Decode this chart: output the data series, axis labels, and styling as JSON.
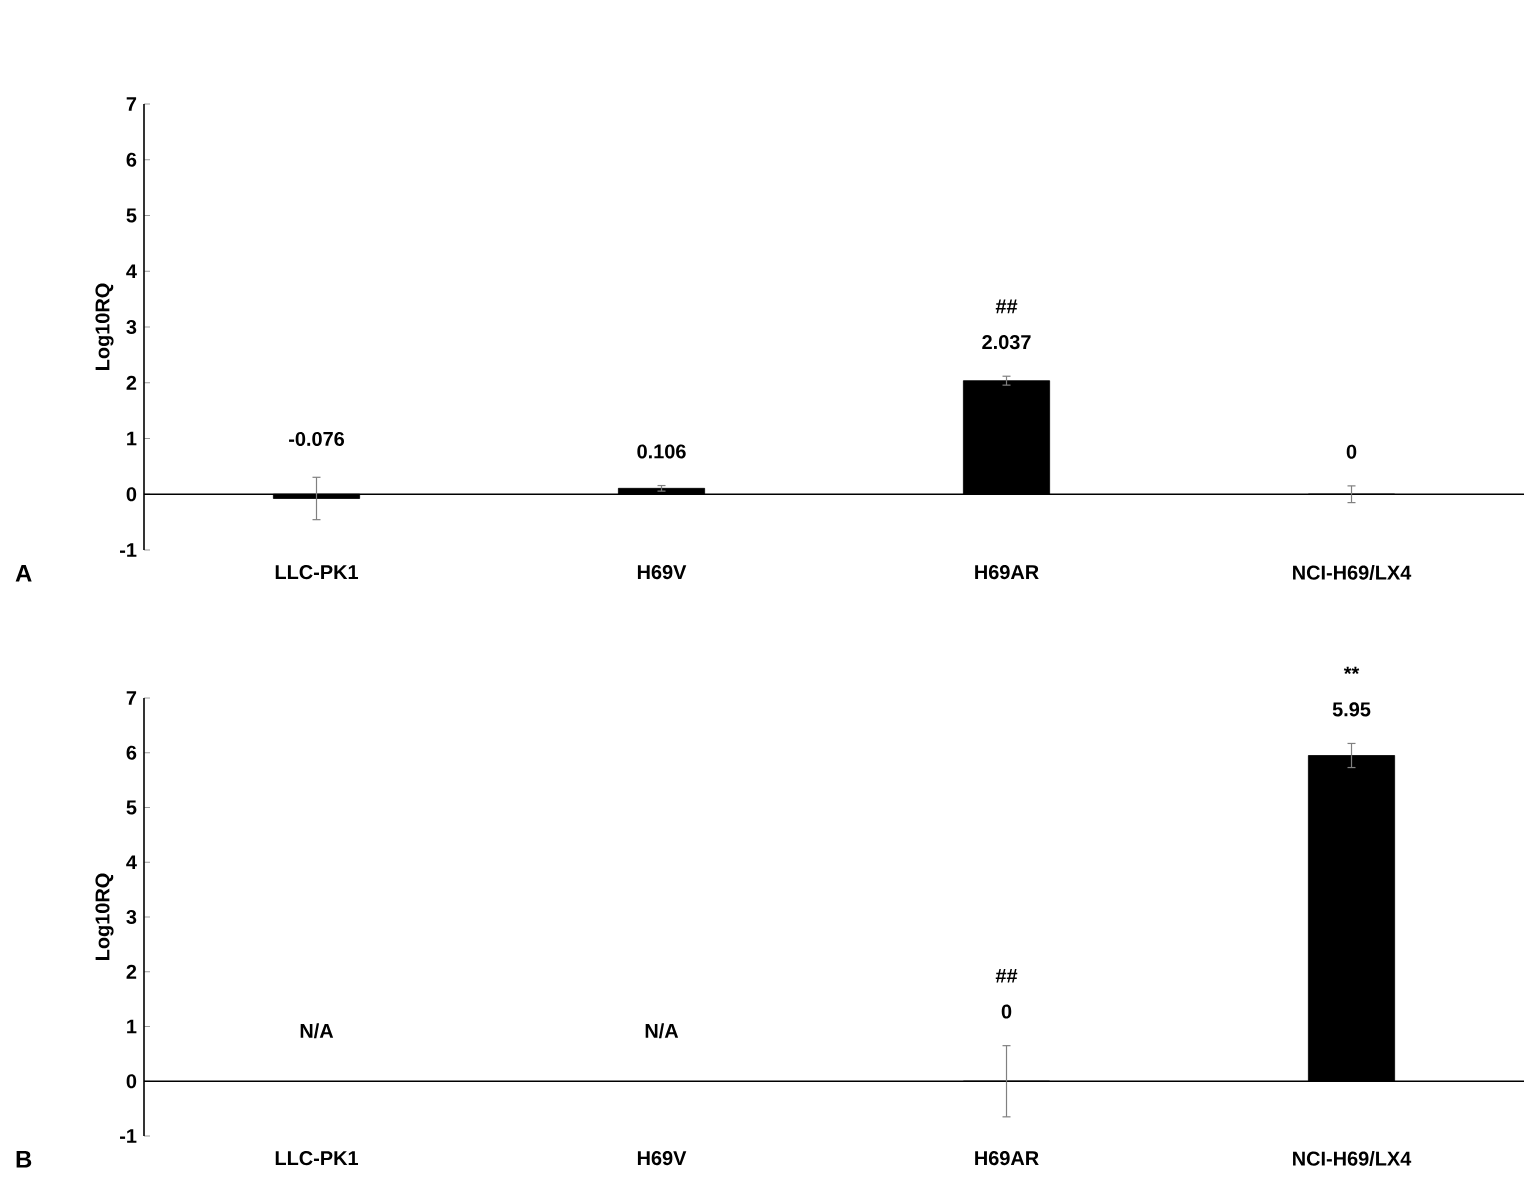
{
  "chart_data": [
    {
      "type": "bar",
      "ylabel": "Log10RQ",
      "categories": [
        "LLC-PK1",
        "H69V",
        "H69AR",
        "NCI-H69/LX4"
      ],
      "values": [
        -0.076,
        0.106,
        2.037,
        0
      ],
      "errors": [
        0.38,
        0.05,
        0.08,
        0.15
      ],
      "value_labels": [
        "-0.076",
        "0.106",
        "2.037",
        "0"
      ],
      "color": "#000000",
      "ylim": [
        -1,
        7
      ],
      "yticks": [
        -1,
        0,
        1,
        2,
        3,
        4,
        5,
        6,
        7
      ],
      "annotations": [
        "##",
        "A"
      ]
    },
    {
      "type": "bar",
      "ylabel": "Log10RQ",
      "categories": [
        "LLC-PK1",
        "H69V",
        "H69AR",
        "NCI-H69/LX4"
      ],
      "values": [
        null,
        null,
        0,
        5.95
      ],
      "errors": [
        null,
        null,
        0.65,
        0.22
      ],
      "value_labels": [
        "N/A",
        "N/A",
        "0",
        "5.95"
      ],
      "color": "#000000",
      "ylim": [
        -1,
        7
      ],
      "yticks": [
        -1,
        0,
        1,
        2,
        3,
        4,
        5,
        6,
        7
      ],
      "annotations": [
        "##",
        "**",
        "B"
      ]
    }
  ]
}
